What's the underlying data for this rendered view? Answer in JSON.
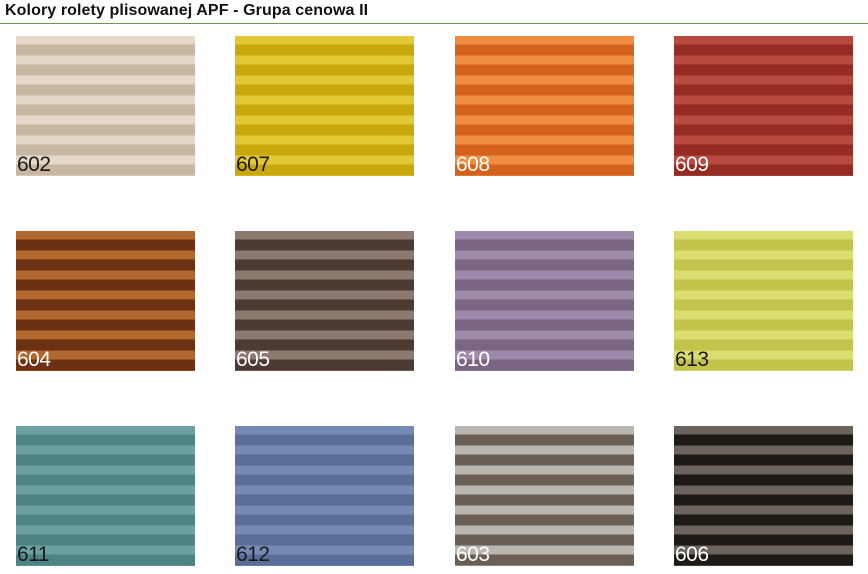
{
  "title": "Kolory rolety plisowanej APF - Grupa cenowa II",
  "accent_rule_color": "#6a9a52",
  "swatches": [
    {
      "code": "602",
      "light": "#e4d9c8",
      "dark": "#c8b8a2",
      "label_color": "#1a1a1a"
    },
    {
      "code": "607",
      "light": "#e2c834",
      "dark": "#c9a80e",
      "label_color": "#1a1a1a"
    },
    {
      "code": "608",
      "light": "#f08c3e",
      "dark": "#d3621e",
      "label_color": "#ffffff"
    },
    {
      "code": "609",
      "light": "#b8493e",
      "dark": "#942c24",
      "label_color": "#ffffff"
    },
    {
      "code": "604",
      "light": "#b2672c",
      "dark": "#6c3012",
      "label_color": "#ffffff"
    },
    {
      "code": "605",
      "light": "#8c7a70",
      "dark": "#4c3a34",
      "label_color": "#ffffff"
    },
    {
      "code": "610",
      "light": "#9e8aaa",
      "dark": "#7a6582",
      "label_color": "#ffffff"
    },
    {
      "code": "613",
      "light": "#dade70",
      "dark": "#c2c44c",
      "label_color": "#1a1a1a"
    },
    {
      "code": "611",
      "light": "#6ca0a2",
      "dark": "#4d8484",
      "label_color": "#1a1a1a"
    },
    {
      "code": "612",
      "light": "#748ab4",
      "dark": "#5a6e98",
      "label_color": "#1a1a1a"
    },
    {
      "code": "603",
      "light": "#bab6b2",
      "dark": "#6a5e55",
      "label_color": "#ffffff"
    },
    {
      "code": "606",
      "light": "#6c645c",
      "dark": "#1e1a16",
      "label_color": "#ffffff"
    }
  ]
}
